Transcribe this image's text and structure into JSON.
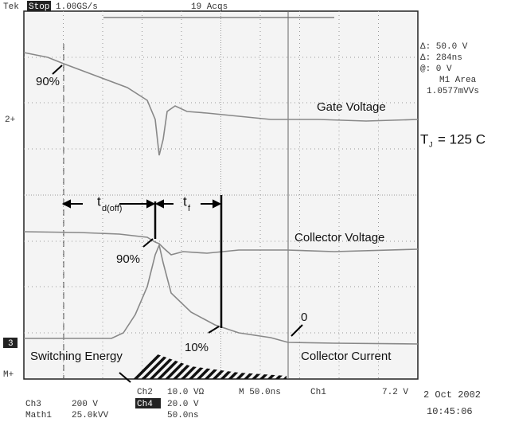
{
  "header": {
    "brand": "Tek",
    "state": "Stop",
    "sample_rate": "1.00GS/s",
    "acquisitions": "19 Acqs"
  },
  "readout": [
    "Δ: 50.0 V",
    "Δ: 284ns",
    "@: 0 V",
    "M1 Area",
    "1.0577mVVs"
  ],
  "markers": {
    "ch2": "2+",
    "ch3": "3",
    "math": "M+"
  },
  "annotations": {
    "gate_90": "90%",
    "gate_voltage": "Gate Voltage",
    "tj_t": "T",
    "tj_sub": "J",
    "tj_rest": "= 125  C",
    "td_t": "t",
    "td_sub": "d(off)",
    "tf_t": "t",
    "tf_sub": "f",
    "collector_voltage": "Collector Voltage",
    "cv_90": "90%",
    "zero": "0",
    "ci_10": "10%",
    "collector_current": "Collector Current",
    "switching_energy": "Switching Energy"
  },
  "footer": {
    "ch2": "Ch2",
    "ch2_scale": "10.0 VΩ",
    "timebase": "M 50.0ns",
    "trigger_ch": "Ch1",
    "trigger_level": "7.2 V",
    "ch3": "Ch3",
    "ch3_scale": "200 V",
    "ch4": "Ch4",
    "ch4_scale": "20.0 V",
    "math": "Math1",
    "math_scale": "25.0kVV",
    "math_time": "50.0ns",
    "date": "2 Oct 2002",
    "time": "10:45:06"
  }
}
